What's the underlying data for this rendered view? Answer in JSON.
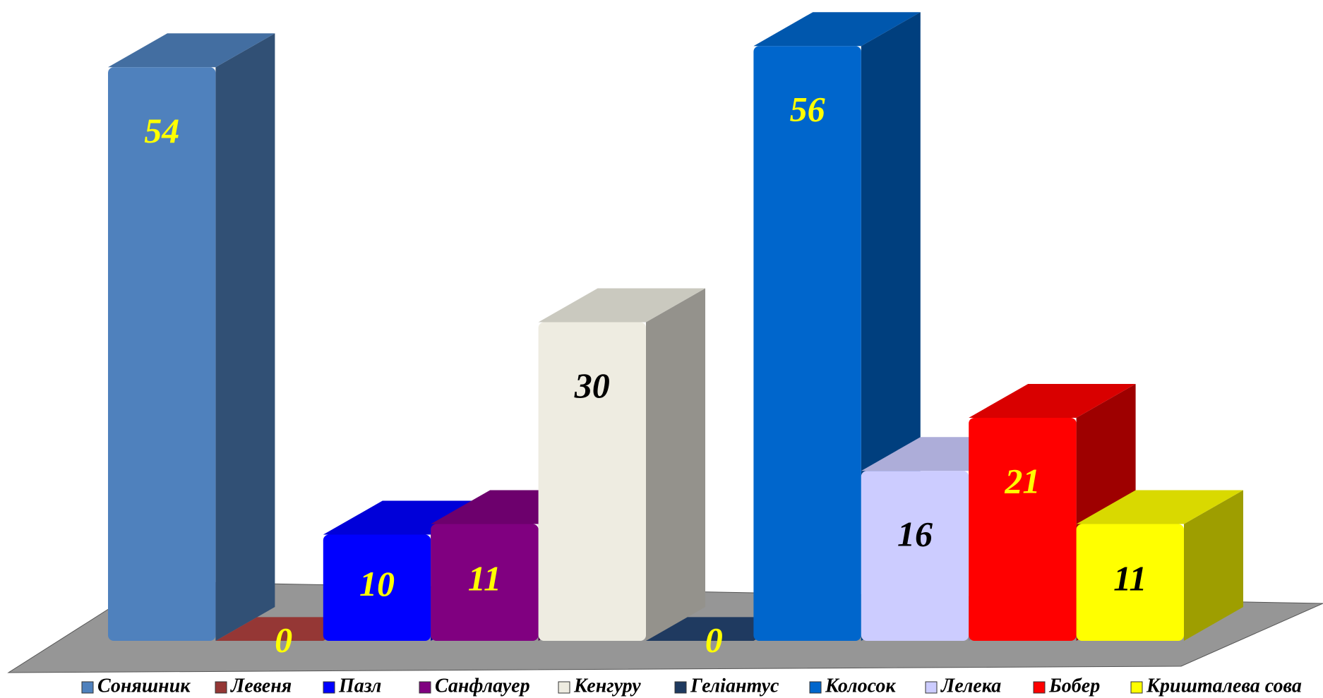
{
  "chart_data": {
    "type": "bar3d",
    "series": [
      {
        "name": "Соняшник",
        "color": "#4f81bd",
        "values": [
          54
        ],
        "label_color": "#ffff00"
      },
      {
        "name": "Левеня",
        "color": "#953735",
        "values": [
          0
        ],
        "label_color": "#ffff00"
      },
      {
        "name": "Пазл",
        "color": "#0000ff",
        "values": [
          10
        ],
        "label_color": "#ffff00"
      },
      {
        "name": "Санфлауер",
        "color": "#800080",
        "values": [
          11
        ],
        "label_color": "#ffff00"
      },
      {
        "name": "Кенгуру",
        "color": "#eeece1",
        "values": [
          30
        ],
        "label_color": "#000000"
      },
      {
        "name": "Геліантус",
        "color": "#1f3a60",
        "values": [
          0
        ],
        "label_color": "#ffff00"
      },
      {
        "name": "Колосок",
        "color": "#0066cc",
        "values": [
          56
        ],
        "label_color": "#ffff00"
      },
      {
        "name": "Лелека",
        "color": "#ccccff",
        "values": [
          16
        ],
        "label_color": "#000000"
      },
      {
        "name": "Бобер",
        "color": "#ff0000",
        "values": [
          21
        ],
        "label_color": "#ffff00"
      },
      {
        "name": "Кришталева сова",
        "color": "#ffff00",
        "values": [
          11
        ],
        "label_color": "#000000"
      }
    ],
    "legend": "bottom"
  }
}
